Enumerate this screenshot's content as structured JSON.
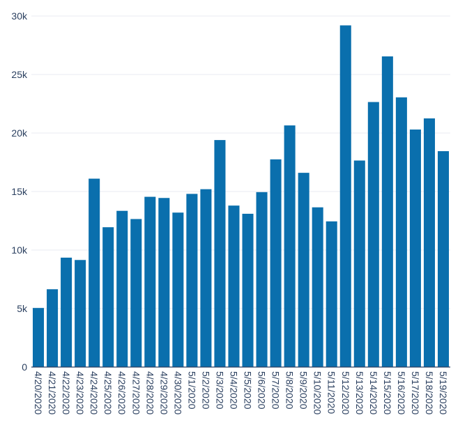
{
  "chart_data": {
    "type": "bar",
    "title": "",
    "xlabel": "",
    "ylabel": "",
    "bar_color": "#0a6fad",
    "grid": true,
    "ylim": [
      0,
      30000
    ],
    "y_ticks": [
      {
        "value": 0,
        "label": "0"
      },
      {
        "value": 5000,
        "label": "5k"
      },
      {
        "value": 10000,
        "label": "10k"
      },
      {
        "value": 15000,
        "label": "15k"
      },
      {
        "value": 20000,
        "label": "20k"
      },
      {
        "value": 25000,
        "label": "25k"
      },
      {
        "value": 30000,
        "label": "30k"
      }
    ],
    "categories": [
      "4/20/2020",
      "4/21/2020",
      "4/22/2020",
      "4/23/2020",
      "4/24/2020",
      "4/25/2020",
      "4/26/2020",
      "4/27/2020",
      "4/28/2020",
      "4/29/2020",
      "4/30/2020",
      "5/1/2020",
      "5/2/2020",
      "5/3/2020",
      "5/4/2020",
      "5/5/2020",
      "5/6/2020",
      "5/7/2020",
      "5/8/2020",
      "5/9/2020",
      "5/10/2020",
      "5/11/2020",
      "5/12/2020",
      "5/13/2020",
      "5/14/2020",
      "5/15/2020",
      "5/16/2020",
      "5/17/2020",
      "5/18/2020",
      "5/19/2020"
    ],
    "values": [
      5050,
      6650,
      9350,
      9150,
      16100,
      11950,
      13350,
      12650,
      14550,
      14450,
      13200,
      14800,
      15200,
      19400,
      13800,
      13100,
      14950,
      17750,
      20650,
      16600,
      13650,
      12450,
      29200,
      17650,
      22650,
      26550,
      23050,
      20300,
      21250,
      18450
    ]
  }
}
